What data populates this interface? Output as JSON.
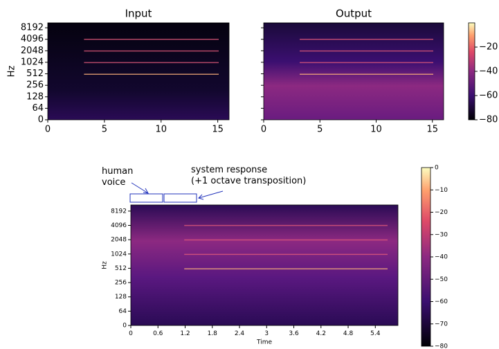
{
  "chart_data": [
    {
      "type": "spectrogram",
      "title": "Input",
      "ylabel": "Hz",
      "xlim": [
        0,
        16
      ],
      "xticks": [
        0,
        5,
        10,
        15
      ],
      "ylim": [
        0,
        11025
      ],
      "yticks": [
        0,
        64,
        128,
        256,
        512,
        1024,
        2048,
        4096,
        8192
      ],
      "yscale": "symlog",
      "linthresh": 64,
      "ytick_labels": true
    },
    {
      "type": "spectrogram",
      "title": "Output",
      "xlim": [
        0,
        16
      ],
      "xticks": [
        0,
        5,
        10,
        15
      ],
      "ylim": [
        0,
        11025
      ],
      "yticks": [
        0,
        64,
        128,
        256,
        512,
        1024,
        2048,
        4096,
        8192
      ],
      "yscale": "symlog",
      "linthresh": 64,
      "ytick_labels": false
    },
    {
      "type": "colorbar",
      "clim": [
        -80,
        0
      ],
      "ticks": [
        {
          "value": -20,
          "label": "−20"
        },
        {
          "value": -40,
          "label": "−40"
        },
        {
          "value": -60,
          "label": "−60"
        },
        {
          "value": -80,
          "label": "−80"
        }
      ]
    },
    {
      "type": "spectrogram",
      "xlabel": "Time",
      "ylabel": "Hz",
      "xlim": [
        0,
        5.9
      ],
      "xticks": [
        0,
        0.6,
        1.2,
        1.8,
        2.4,
        3,
        3.6,
        4.2,
        4.8,
        5.4
      ],
      "ylim": [
        0,
        11025
      ],
      "yticks": [
        0,
        64,
        128,
        256,
        512,
        1024,
        2048,
        4096,
        8192
      ],
      "yscale": "symlog",
      "linthresh": 64,
      "ytick_labels": true,
      "annotations": [
        [
          "human",
          "voice"
        ],
        [
          "system response",
          "(+1 octave transposition)"
        ]
      ]
    },
    {
      "type": "colorbar",
      "clim": [
        -80,
        0
      ],
      "ticks": [
        0,
        {
          "value": -10,
          "label": "−10"
        },
        {
          "value": -20,
          "label": "−20"
        },
        {
          "value": -30,
          "label": "−30"
        },
        {
          "value": -40,
          "label": "−40"
        },
        {
          "value": -50,
          "label": "−50"
        },
        {
          "value": -60,
          "label": "−60"
        },
        {
          "value": -70,
          "label": "−70"
        },
        {
          "value": -80,
          "label": "−80"
        }
      ]
    }
  ]
}
